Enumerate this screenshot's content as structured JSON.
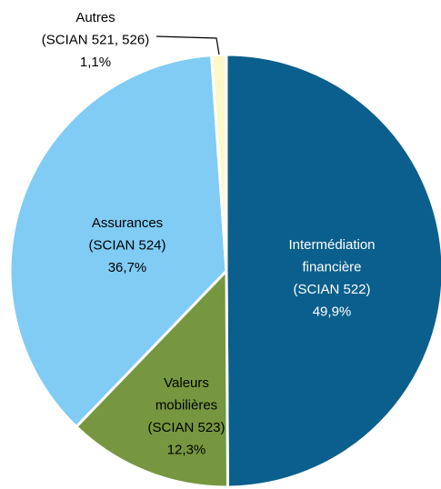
{
  "chart_data": {
    "type": "pie",
    "categories": [
      [
        "Intermédiation",
        "financière",
        "(SCIAN 522)"
      ],
      [
        "Valeurs",
        "mobilières",
        "(SCIAN 523)"
      ],
      [
        "Assurances",
        "(SCIAN 524)"
      ],
      [
        "Autres",
        "(SCIAN 521, 526)"
      ]
    ],
    "values": [
      49.9,
      12.3,
      36.7,
      1.1
    ],
    "value_labels": [
      "49,9%",
      "12,3%",
      "36,7%",
      "1,1%"
    ],
    "colors": [
      "#0b5f8c",
      "#76973f",
      "#80ccf4",
      "#fdf9c8"
    ],
    "label_colors": [
      "#ffffff",
      "#000000",
      "#000000",
      "#000000"
    ]
  }
}
